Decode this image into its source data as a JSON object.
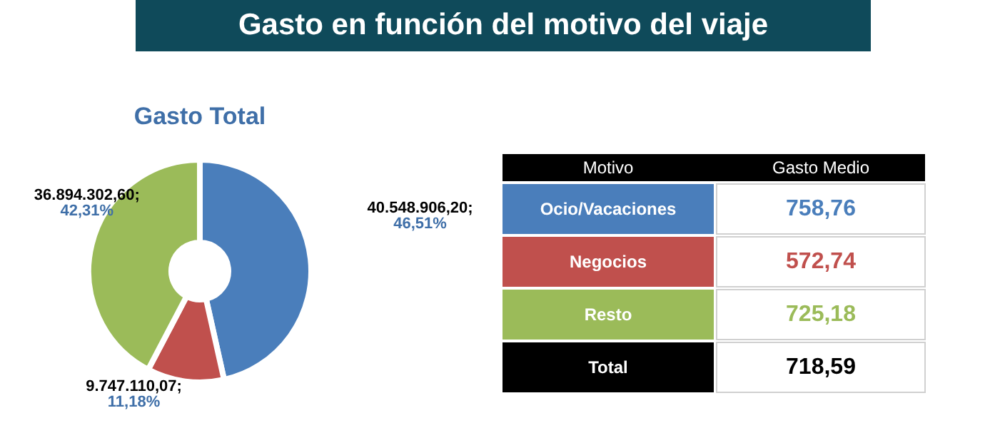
{
  "chart_data": [
    {
      "type": "donut",
      "title": "Gasto en función del motivo del viaje",
      "subtitle": "Gasto Total",
      "categories": [
        null,
        null,
        null
      ],
      "values": [
        40548906.2,
        9747110.07,
        36894302.6
      ],
      "colors": [
        "#4a7ebb",
        "#c0504d",
        "#9bbb59"
      ],
      "value_labels": [
        "40.548.906,20;\n46,51%",
        "9.747.110,07;\n11,18%",
        "36.894.302,60;\n42,31%"
      ]
    },
    {
      "type": "other",
      "xlabel": "Motivo",
      "ylabel": "Gasto Medio",
      "categories": [
        "Ocio/Vacaciones",
        "Negocios",
        "Resto",
        "Total"
      ],
      "colors": [
        "#4a7ebb",
        "#c0504d",
        "#9bbb59",
        "#000000"
      ],
      "value_labels": [
        "758,76",
        "572,74",
        "725,18",
        "718,59"
      ]
    }
  ]
}
